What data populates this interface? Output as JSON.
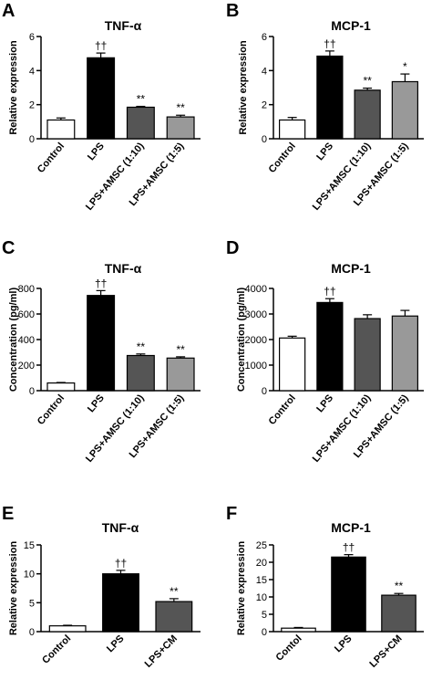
{
  "chart_data": [
    {
      "panel": "A",
      "type": "bar",
      "title": "TNF-α",
      "ylabel": "Relative expression",
      "ylim": [
        0,
        6
      ],
      "yticks": [
        0,
        2,
        4,
        6
      ],
      "categories": [
        "Control",
        "LPS",
        "LPS+AMSC (1:10)",
        "LPS+AMSC (1:5)"
      ],
      "values": [
        1.1,
        4.75,
        1.85,
        1.28
      ],
      "errors": [
        0.12,
        0.28,
        0.05,
        0.1
      ],
      "colors": [
        "#ffffff",
        "#000000",
        "#555555",
        "#999999"
      ],
      "annotations": [
        "",
        "††",
        "**",
        "**"
      ]
    },
    {
      "panel": "B",
      "type": "bar",
      "title": "MCP-1",
      "ylabel": "Relative expression",
      "ylim": [
        0,
        6
      ],
      "yticks": [
        0,
        2,
        4,
        6
      ],
      "categories": [
        "Control",
        "LPS",
        "LPS+AMSC (1:10)",
        "LPS+AMSC (1:5)"
      ],
      "values": [
        1.1,
        4.85,
        2.85,
        3.35
      ],
      "errors": [
        0.15,
        0.3,
        0.12,
        0.45
      ],
      "colors": [
        "#ffffff",
        "#000000",
        "#555555",
        "#999999"
      ],
      "annotations": [
        "",
        "††",
        "**",
        "*"
      ]
    },
    {
      "panel": "C",
      "type": "bar",
      "title": "TNF-α",
      "ylabel": "Concentration (pg/ml)",
      "ylim": [
        0,
        800
      ],
      "yticks": [
        0,
        200,
        400,
        600,
        800
      ],
      "categories": [
        "Control",
        "LPS",
        "LPS+AMSC (1:10)",
        "LPS+AMSC (1:5)"
      ],
      "values": [
        60,
        745,
        275,
        255
      ],
      "errors": [
        4,
        38,
        12,
        10
      ],
      "colors": [
        "#ffffff",
        "#000000",
        "#555555",
        "#999999"
      ],
      "annotations": [
        "",
        "††",
        "**",
        "**"
      ]
    },
    {
      "panel": "D",
      "type": "bar",
      "title": "MCP-1",
      "ylabel": "Concentration (pg/ml)",
      "ylim": [
        0,
        4000
      ],
      "yticks": [
        0,
        1000,
        2000,
        3000,
        4000
      ],
      "categories": [
        "Control",
        "LPS",
        "LPS+AMSC (1:10)",
        "LPS+AMSC (1:5)"
      ],
      "values": [
        2060,
        3450,
        2820,
        2920
      ],
      "errors": [
        70,
        150,
        150,
        220
      ],
      "colors": [
        "#ffffff",
        "#000000",
        "#555555",
        "#999999"
      ],
      "annotations": [
        "",
        "††",
        "",
        ""
      ]
    },
    {
      "panel": "E",
      "type": "bar",
      "title": "TNF-α",
      "ylabel": "Relative expression",
      "ylim": [
        0,
        15
      ],
      "yticks": [
        0,
        5,
        10,
        15
      ],
      "categories": [
        "Control",
        "LPS",
        "LPS+CM"
      ],
      "values": [
        1.0,
        10.0,
        5.2
      ],
      "errors": [
        0.1,
        0.6,
        0.5
      ],
      "colors": [
        "#ffffff",
        "#000000",
        "#555555"
      ],
      "annotations": [
        "",
        "††",
        "**"
      ]
    },
    {
      "panel": "F",
      "type": "bar",
      "title": "MCP-1",
      "ylabel": "Relative expression",
      "ylim": [
        0,
        25
      ],
      "yticks": [
        0,
        5,
        10,
        15,
        20,
        25
      ],
      "categories": [
        "Contol",
        "LPS",
        "LPS+CM"
      ],
      "values": [
        1.0,
        21.5,
        10.5
      ],
      "errors": [
        0.2,
        0.7,
        0.5
      ],
      "colors": [
        "#ffffff",
        "#000000",
        "#555555"
      ],
      "annotations": [
        "",
        "††",
        "**"
      ]
    }
  ]
}
